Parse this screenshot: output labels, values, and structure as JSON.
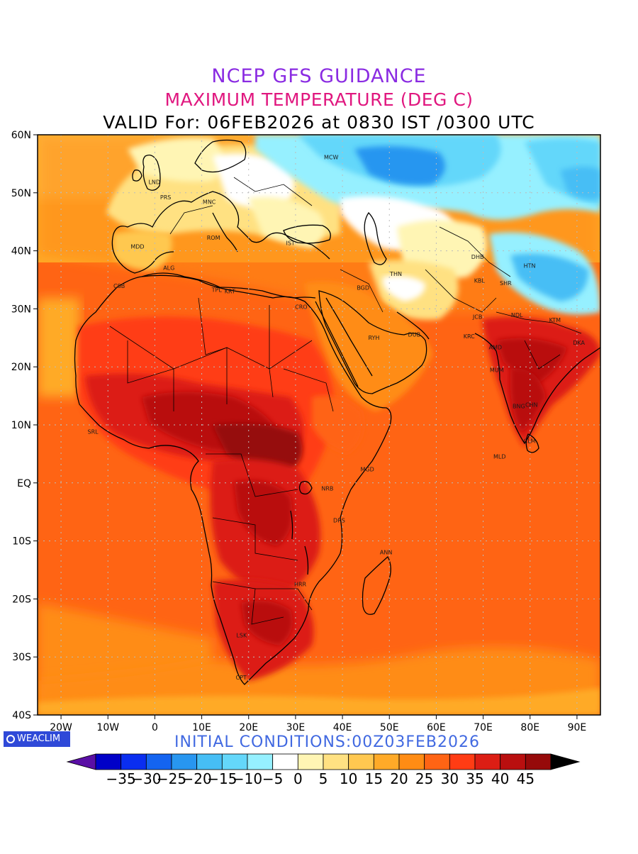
{
  "title": {
    "line1": "NCEP GFS GUIDANCE",
    "line2": "MAXIMUM TEMPERATURE (DEG C)",
    "line3": "VALID For: 06FEB2026 at 0830 IST /0300 UTC"
  },
  "map": {
    "lon_range": [
      -25,
      95
    ],
    "lat_range": [
      -40,
      60
    ],
    "lat_labels": [
      {
        "value": 60,
        "label": "60N"
      },
      {
        "value": 50,
        "label": "50N"
      },
      {
        "value": 40,
        "label": "40N"
      },
      {
        "value": 30,
        "label": "30N"
      },
      {
        "value": 20,
        "label": "20N"
      },
      {
        "value": 10,
        "label": "10N"
      },
      {
        "value": 0,
        "label": "EQ"
      },
      {
        "value": -10,
        "label": "10S"
      },
      {
        "value": -20,
        "label": "20S"
      },
      {
        "value": -30,
        "label": "30S"
      },
      {
        "value": -40,
        "label": "40S"
      }
    ],
    "lon_labels": [
      {
        "value": -20,
        "label": "20W"
      },
      {
        "value": -10,
        "label": "10W"
      },
      {
        "value": 0,
        "label": "0"
      },
      {
        "value": 10,
        "label": "10E"
      },
      {
        "value": 20,
        "label": "20E"
      },
      {
        "value": 30,
        "label": "30E"
      },
      {
        "value": 40,
        "label": "40E"
      },
      {
        "value": 50,
        "label": "50E"
      },
      {
        "value": 60,
        "label": "60E"
      },
      {
        "value": 70,
        "label": "70E"
      },
      {
        "value": 80,
        "label": "80E"
      },
      {
        "value": 90,
        "label": "90E"
      }
    ],
    "cities": [
      {
        "code": "MCW",
        "lon": 37.6,
        "lat": 55.8
      },
      {
        "code": "LND",
        "lon": -0.1,
        "lat": 51.5
      },
      {
        "code": "PRS",
        "lon": 2.3,
        "lat": 48.9
      },
      {
        "code": "MNC",
        "lon": 11.6,
        "lat": 48.1
      },
      {
        "code": "MDD",
        "lon": -3.7,
        "lat": 40.4
      },
      {
        "code": "ROM",
        "lon": 12.5,
        "lat": 41.9
      },
      {
        "code": "IST",
        "lon": 28.9,
        "lat": 41.0
      },
      {
        "code": "ALG",
        "lon": 3.0,
        "lat": 36.7
      },
      {
        "code": "CSB",
        "lon": -7.6,
        "lat": 33.6
      },
      {
        "code": "TPL",
        "lon": 13.2,
        "lat": 32.9
      },
      {
        "code": "KRT",
        "lon": 16.0,
        "lat": 32.7
      },
      {
        "code": "CRO",
        "lon": 31.2,
        "lat": 30.0
      },
      {
        "code": "BGD",
        "lon": 44.4,
        "lat": 33.3
      },
      {
        "code": "THN",
        "lon": 51.4,
        "lat": 35.7
      },
      {
        "code": "DHB",
        "lon": 68.8,
        "lat": 38.6
      },
      {
        "code": "HTN",
        "lon": 79.9,
        "lat": 37.1
      },
      {
        "code": "KBL",
        "lon": 69.2,
        "lat": 34.5
      },
      {
        "code": "SHR",
        "lon": 74.8,
        "lat": 34.1
      },
      {
        "code": "JCB",
        "lon": 68.8,
        "lat": 28.3
      },
      {
        "code": "NDL",
        "lon": 77.2,
        "lat": 28.6
      },
      {
        "code": "KTM",
        "lon": 85.3,
        "lat": 27.7
      },
      {
        "code": "RYH",
        "lon": 46.7,
        "lat": 24.7
      },
      {
        "code": "DUB",
        "lon": 55.3,
        "lat": 25.2
      },
      {
        "code": "KRC",
        "lon": 67.0,
        "lat": 24.9
      },
      {
        "code": "AMD",
        "lon": 72.6,
        "lat": 23.0
      },
      {
        "code": "MUM",
        "lon": 72.9,
        "lat": 19.1
      },
      {
        "code": "DKA",
        "lon": 90.4,
        "lat": 23.8
      },
      {
        "code": "BNG",
        "lon": 77.6,
        "lat": 12.9
      },
      {
        "code": "CHN",
        "lon": 80.3,
        "lat": 13.1
      },
      {
        "code": "CLM",
        "lon": 79.9,
        "lat": 6.9
      },
      {
        "code": "MLD",
        "lon": 73.5,
        "lat": 4.2
      },
      {
        "code": "SRL",
        "lon": -13.2,
        "lat": 8.5
      },
      {
        "code": "MGD",
        "lon": 45.3,
        "lat": 2.0
      },
      {
        "code": "NRB",
        "lon": 36.8,
        "lat": -1.3
      },
      {
        "code": "DRS",
        "lon": 39.3,
        "lat": -6.8
      },
      {
        "code": "ANN",
        "lon": 49.3,
        "lat": -12.3
      },
      {
        "code": "HRR",
        "lon": 31.0,
        "lat": -17.8
      },
      {
        "code": "LSK",
        "lon": 18.5,
        "lat": -26.6
      },
      {
        "code": "CPT",
        "lon": 18.4,
        "lat": -33.9
      }
    ]
  },
  "logo": "WEACLIM",
  "initial_conditions": "INITIAL CONDITIONS:00Z03FEB2026",
  "legend": {
    "labels": [
      "-35",
      "-30",
      "-25",
      "-20",
      "-15",
      "-10",
      "-5",
      "0",
      "5",
      "10",
      "15",
      "20",
      "25",
      "30",
      "35",
      "40",
      "45"
    ],
    "colors": [
      "#5a0fa5",
      "#0000c8",
      "#0a2ef0",
      "#1464f0",
      "#2896f0",
      "#46bef5",
      "#64d7fa",
      "#96f0ff",
      "#ffffff",
      "#fff5b4",
      "#ffe182",
      "#ffc850",
      "#ffaa28",
      "#ff8c14",
      "#ff6414",
      "#ff3c14",
      "#dc1e14",
      "#b90f0f",
      "#960a0a",
      "#000000"
    ]
  }
}
